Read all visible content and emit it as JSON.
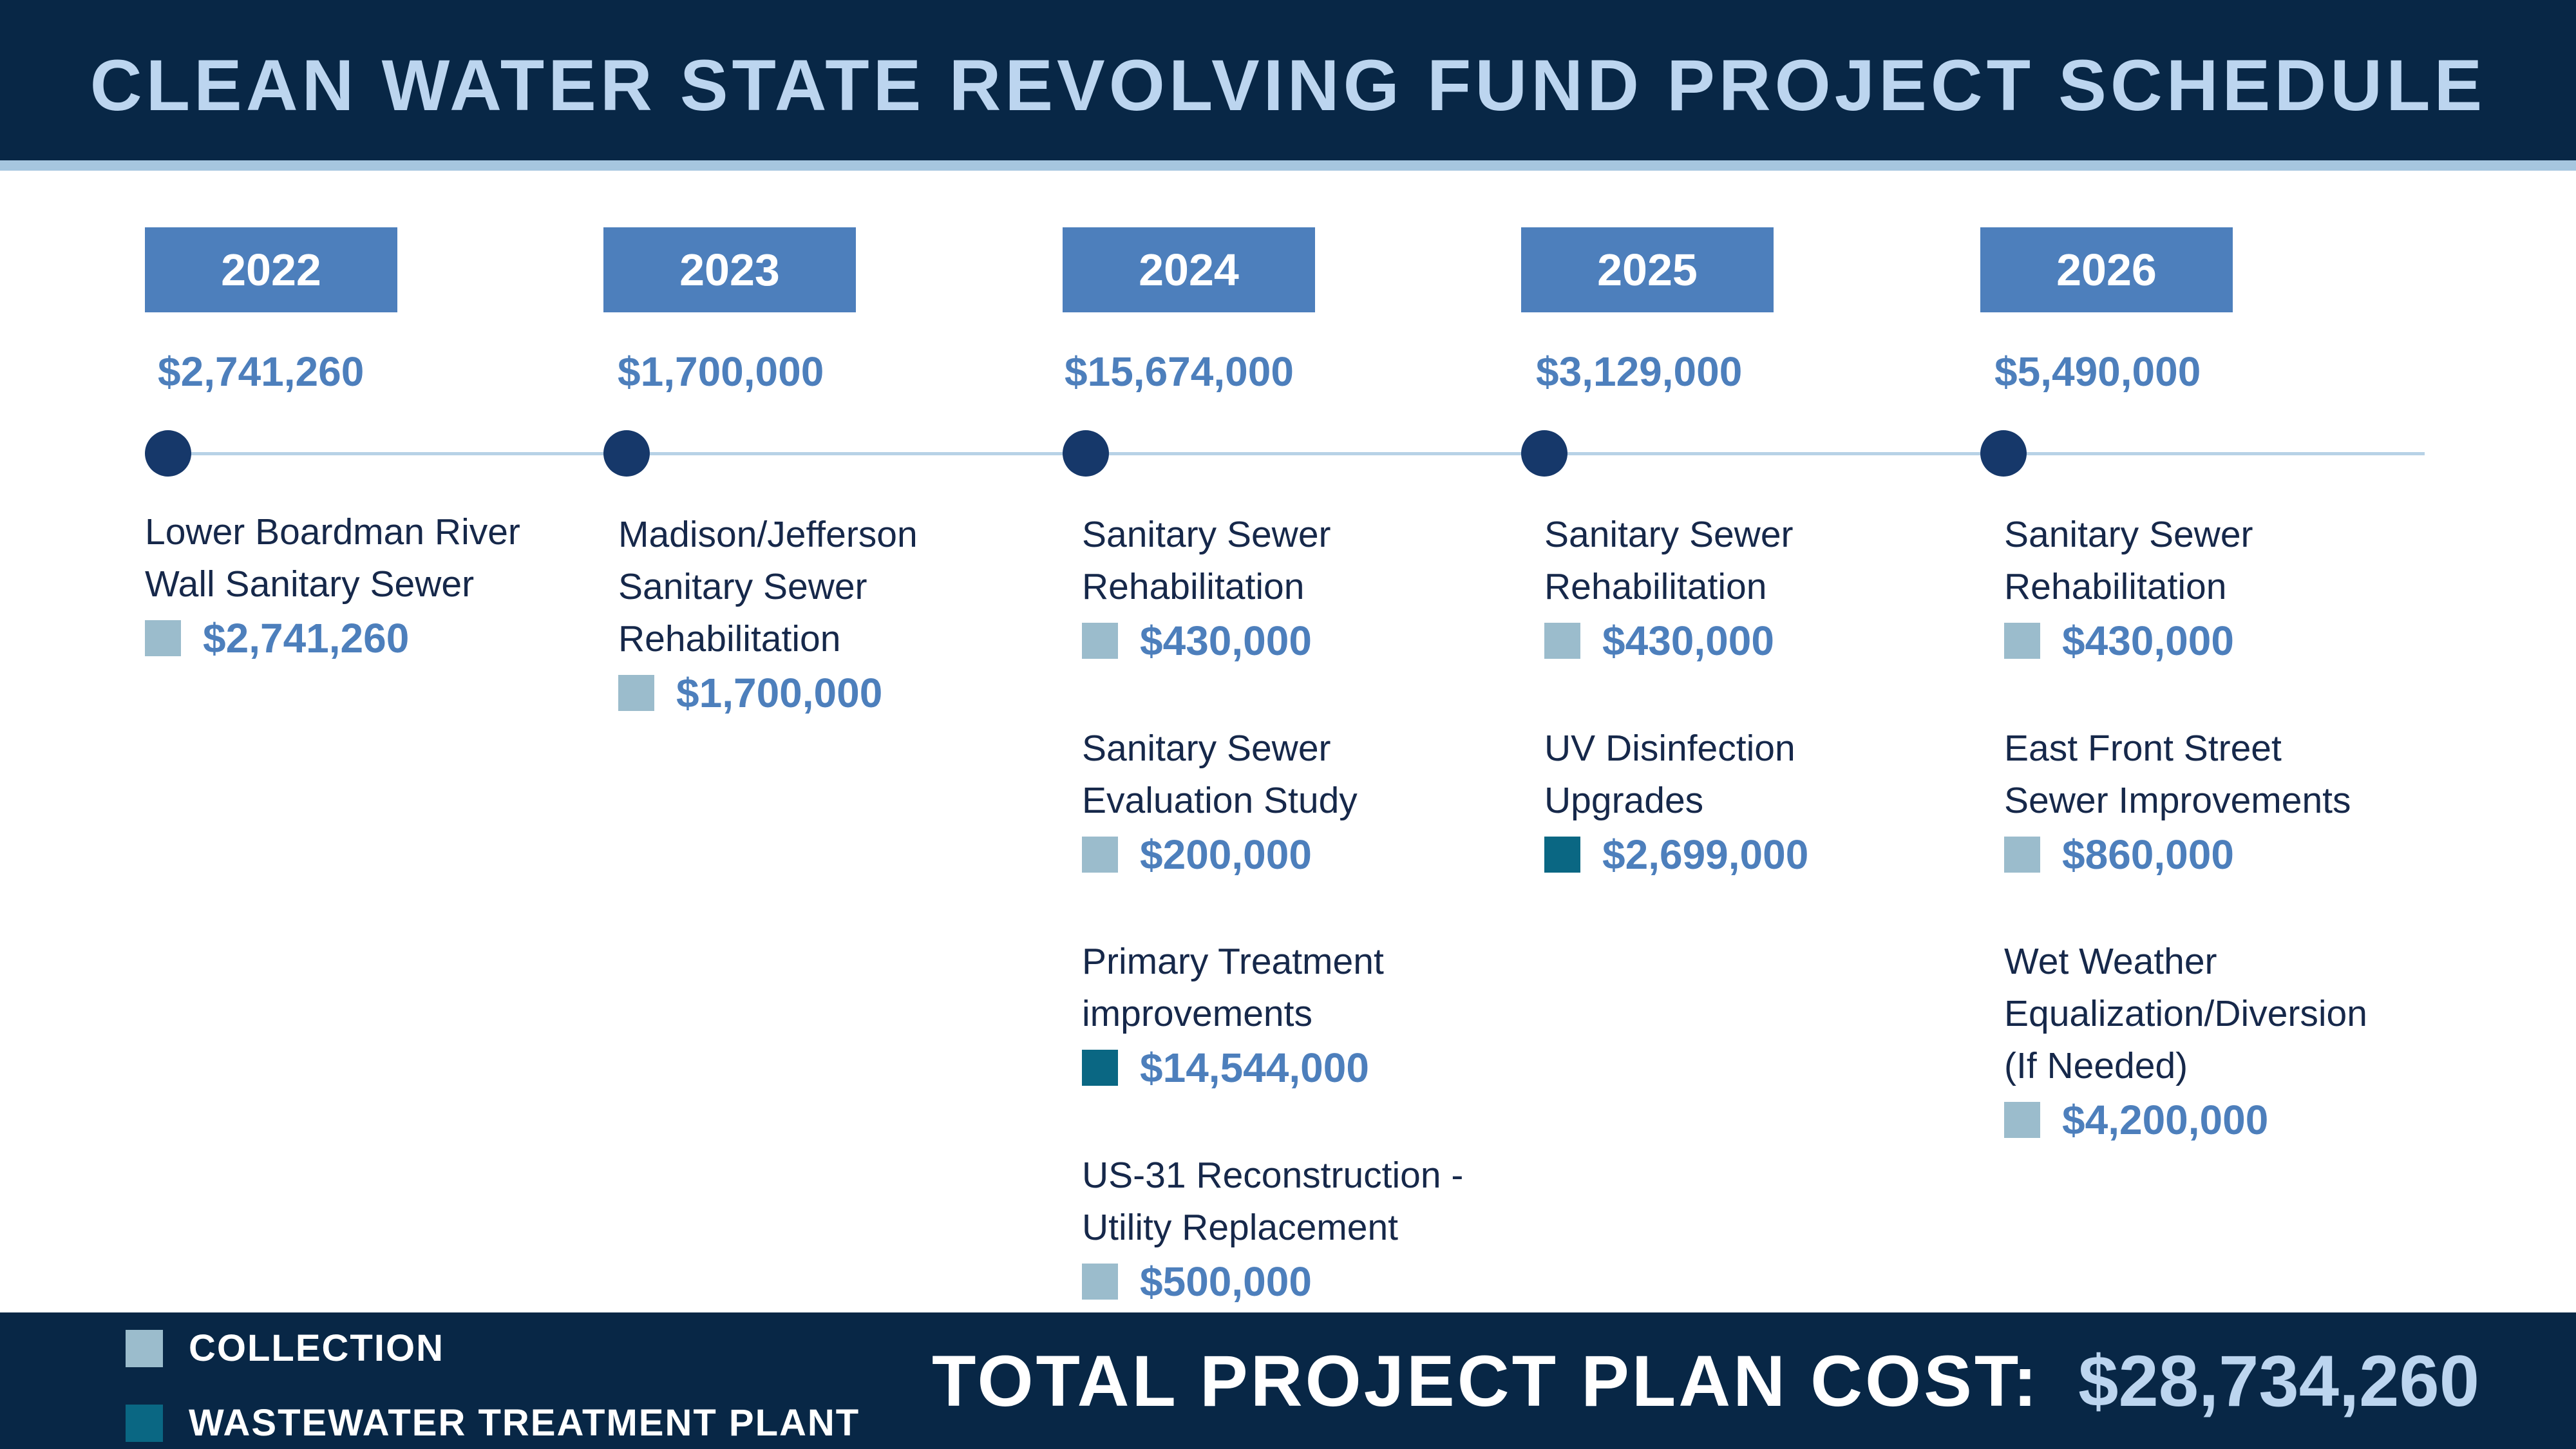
{
  "header": {
    "title": "CLEAN WATER STATE REVOLVING FUND PROJECT SCHEDULE"
  },
  "colors": {
    "header_bg": "#082746",
    "year_box": "#4d7fbc",
    "amount_text": "#4d7fbc",
    "timeline_dot": "#16386a",
    "timeline_line": "#b7d2e6",
    "collection": "#9bbccc",
    "wastewater_treatment_plant": "#0a6783"
  },
  "years": [
    {
      "year": "2022",
      "total": "$2,741,260",
      "projects": [
        {
          "name": [
            "Lower Boardman River",
            "Wall Sanitary Sewer"
          ],
          "cost": "$2,741,260",
          "category": "collection"
        }
      ]
    },
    {
      "year": "2023",
      "total": "$1,700,000",
      "projects": [
        {
          "name": [
            "Madison/Jefferson",
            "Sanitary Sewer",
            "Rehabilitation"
          ],
          "cost": "$1,700,000",
          "category": "collection"
        }
      ]
    },
    {
      "year": "2024",
      "total": "$15,674,000",
      "projects": [
        {
          "name": [
            "Sanitary Sewer",
            "Rehabilitation"
          ],
          "cost": "$430,000",
          "category": "collection"
        },
        {
          "name": [
            "Sanitary Sewer",
            "Evaluation Study"
          ],
          "cost": "$200,000",
          "category": "collection"
        },
        {
          "name": [
            "Primary Treatment",
            "improvements"
          ],
          "cost": "$14,544,000",
          "category": "wwtp"
        },
        {
          "name": [
            "US-31 Reconstruction -",
            "Utility Replacement"
          ],
          "cost": "$500,000",
          "category": "collection"
        }
      ]
    },
    {
      "year": "2025",
      "total": "$3,129,000",
      "projects": [
        {
          "name": [
            "Sanitary Sewer",
            "Rehabilitation"
          ],
          "cost": "$430,000",
          "category": "collection"
        },
        {
          "name": [
            "UV Disinfection",
            "Upgrades"
          ],
          "cost": "$2,699,000",
          "category": "wwtp"
        }
      ]
    },
    {
      "year": "2026",
      "total": "$5,490,000",
      "projects": [
        {
          "name": [
            "Sanitary Sewer",
            "Rehabilitation"
          ],
          "cost": "$430,000",
          "category": "collection"
        },
        {
          "name": [
            "East Front Street",
            "Sewer Improvements"
          ],
          "cost": "$860,000",
          "category": "collection"
        },
        {
          "name": [
            "Wet Weather",
            "Equalization/Diversion",
            "(If Needed)"
          ],
          "cost": "$4,200,000",
          "category": "collection"
        }
      ]
    }
  ],
  "legend": [
    {
      "label": "COLLECTION",
      "category": "collection"
    },
    {
      "label": "WASTEWATER TREATMENT PLANT",
      "category": "wwtp"
    }
  ],
  "total": {
    "label": "TOTAL PROJECT PLAN COST:",
    "value": "$28,734,260"
  }
}
